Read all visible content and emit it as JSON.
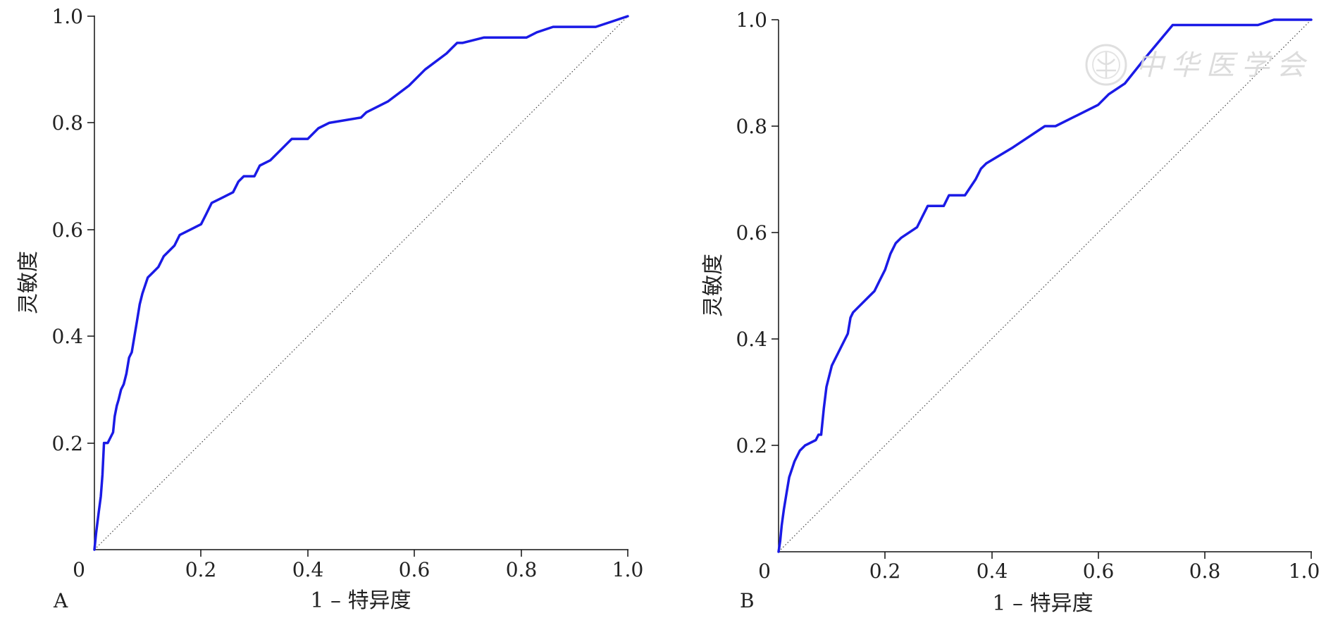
{
  "chart_data": [
    {
      "type": "line",
      "panel_label": "A",
      "xlabel": "1 – 特异度",
      "ylabel": "灵敏度",
      "xlim": [
        0,
        1.0
      ],
      "ylim": [
        0,
        1.0
      ],
      "x_ticks": [
        "0",
        "0.2",
        "0.4",
        "0.6",
        "0.8",
        "1.0"
      ],
      "y_ticks": [
        "0.2",
        "0.4",
        "0.6",
        "0.8",
        "1.0"
      ],
      "grid": false,
      "reference_line": {
        "x": [
          0,
          1
        ],
        "y": [
          0,
          1
        ],
        "style": "dotted"
      },
      "series": [
        {
          "color": "#1a1ae6",
          "x": [
            0,
            0.003,
            0.008,
            0.012,
            0.015,
            0.018,
            0.025,
            0.03,
            0.035,
            0.038,
            0.042,
            0.045,
            0.05,
            0.055,
            0.06,
            0.065,
            0.07,
            0.075,
            0.08,
            0.085,
            0.09,
            0.1,
            0.11,
            0.12,
            0.13,
            0.15,
            0.16,
            0.18,
            0.2,
            0.21,
            0.22,
            0.24,
            0.26,
            0.27,
            0.28,
            0.3,
            0.31,
            0.33,
            0.35,
            0.36,
            0.37,
            0.4,
            0.41,
            0.42,
            0.44,
            0.5,
            0.51,
            0.55,
            0.59,
            0.62,
            0.66,
            0.67,
            0.68,
            0.69,
            0.73,
            0.81,
            0.83,
            0.86,
            0.9,
            0.94,
            0.97,
            1.0
          ],
          "y": [
            0,
            0.03,
            0.07,
            0.1,
            0.14,
            0.2,
            0.2,
            0.21,
            0.22,
            0.25,
            0.27,
            0.28,
            0.3,
            0.31,
            0.33,
            0.36,
            0.37,
            0.4,
            0.43,
            0.46,
            0.48,
            0.51,
            0.52,
            0.53,
            0.55,
            0.57,
            0.59,
            0.6,
            0.61,
            0.63,
            0.65,
            0.66,
            0.67,
            0.69,
            0.7,
            0.7,
            0.72,
            0.73,
            0.75,
            0.76,
            0.77,
            0.77,
            0.78,
            0.79,
            0.8,
            0.81,
            0.82,
            0.84,
            0.87,
            0.9,
            0.93,
            0.94,
            0.95,
            0.95,
            0.96,
            0.96,
            0.97,
            0.98,
            0.98,
            0.98,
            0.99,
            1.0
          ]
        }
      ]
    },
    {
      "type": "line",
      "panel_label": "B",
      "xlabel": "1 – 特异度",
      "ylabel": "灵敏度",
      "xlim": [
        0,
        1.0
      ],
      "ylim": [
        0,
        1.0
      ],
      "x_ticks": [
        "0",
        "0.2",
        "0.4",
        "0.6",
        "0.8",
        "1.0"
      ],
      "y_ticks": [
        "0.2",
        "0.4",
        "0.6",
        "0.8",
        "1.0"
      ],
      "grid": false,
      "reference_line": {
        "x": [
          0,
          1
        ],
        "y": [
          0,
          1
        ],
        "style": "dotted"
      },
      "series": [
        {
          "color": "#1a1ae6",
          "x": [
            0,
            0.003,
            0.006,
            0.01,
            0.015,
            0.02,
            0.03,
            0.04,
            0.05,
            0.07,
            0.075,
            0.08,
            0.085,
            0.09,
            0.1,
            0.11,
            0.12,
            0.13,
            0.135,
            0.14,
            0.15,
            0.17,
            0.18,
            0.19,
            0.2,
            0.21,
            0.22,
            0.23,
            0.26,
            0.27,
            0.28,
            0.31,
            0.32,
            0.35,
            0.37,
            0.38,
            0.39,
            0.44,
            0.5,
            0.52,
            0.56,
            0.6,
            0.62,
            0.65,
            0.69,
            0.74,
            0.9,
            0.93,
            0.95,
            1.0
          ],
          "y": [
            0,
            0.02,
            0.05,
            0.08,
            0.11,
            0.14,
            0.17,
            0.19,
            0.2,
            0.21,
            0.22,
            0.22,
            0.27,
            0.31,
            0.35,
            0.37,
            0.39,
            0.41,
            0.44,
            0.45,
            0.46,
            0.48,
            0.49,
            0.51,
            0.53,
            0.56,
            0.58,
            0.59,
            0.61,
            0.63,
            0.65,
            0.65,
            0.67,
            0.67,
            0.7,
            0.72,
            0.73,
            0.76,
            0.8,
            0.8,
            0.82,
            0.84,
            0.86,
            0.88,
            0.93,
            0.99,
            0.99,
            1.0,
            1.0,
            1.0
          ]
        }
      ]
    }
  ],
  "watermark": {
    "text": "中华医学会"
  }
}
